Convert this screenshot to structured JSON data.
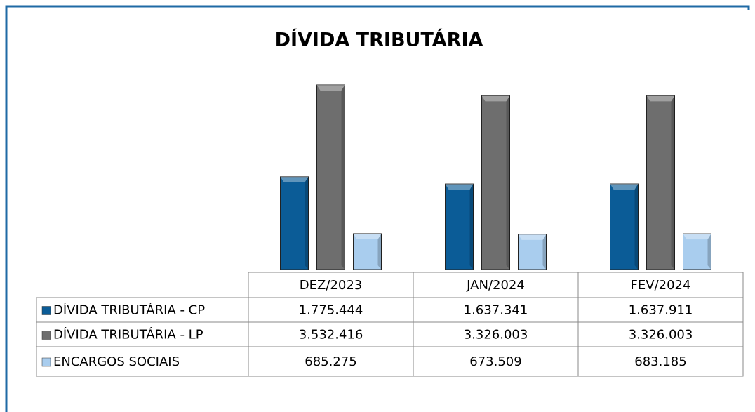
{
  "chart_data": {
    "type": "bar",
    "title": "DÍVIDA TRIBUTÁRIA",
    "categories": [
      "DEZ/2023",
      "JAN/2024",
      "FEV/2024"
    ],
    "series": [
      {
        "name": "DÍVIDA TRIBUTÁRIA - CP",
        "color": "#0b5c97",
        "values": [
          1775444,
          1637341,
          1637911
        ],
        "value_labels": [
          "1.775.444",
          "1.637.341",
          "1.637.911"
        ]
      },
      {
        "name": "DÍVIDA TRIBUTÁRIA - LP",
        "color": "#6e6e6e",
        "values": [
          3532416,
          3326003,
          3326003
        ],
        "value_labels": [
          "3.532.416",
          "3.326.003",
          "3.326.003"
        ]
      },
      {
        "name": "ENCARGOS SOCIAIS",
        "color": "#a9cdee",
        "values": [
          685275,
          673509,
          683185
        ],
        "value_labels": [
          "685.275",
          "673.509",
          "683.185"
        ]
      }
    ]
  }
}
